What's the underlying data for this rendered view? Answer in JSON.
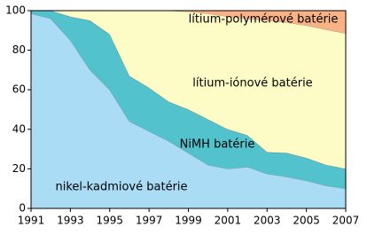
{
  "chart_data": {
    "type": "stacked-area",
    "x": [
      1991,
      1992,
      1993,
      1994,
      1995,
      1996,
      1997,
      1998,
      1999,
      2000,
      2001,
      2002,
      2003,
      2004,
      2005,
      2006,
      2007
    ],
    "series": [
      {
        "name": "nikel-kadmiové batérie",
        "color": "#aadcf5",
        "values": [
          98.5,
          96,
          85,
          70,
          60,
          44,
          39,
          34,
          28,
          22,
          20,
          21,
          17.5,
          16,
          14,
          11.5,
          10
        ]
      },
      {
        "name": "NiMH batérie",
        "color": "#52c2cc",
        "values": [
          1.5,
          4,
          12,
          25,
          28,
          23,
          22,
          20,
          22,
          23,
          20,
          16,
          11,
          12,
          11.5,
          10.5,
          10
        ]
      },
      {
        "name": "lítium-iónové batérie",
        "color": "#fdfbc6",
        "values": [
          0,
          0,
          3,
          5,
          12,
          33,
          39,
          46,
          49.5,
          53.5,
          57,
          59,
          66.5,
          66,
          67,
          68.5,
          68.5
        ]
      },
      {
        "name": "lítium-polymérové batérie",
        "color": "#f8b285",
        "values": [
          0,
          0,
          0,
          0,
          0,
          0,
          0,
          0,
          0.5,
          1.5,
          3,
          4,
          5,
          6,
          7.5,
          9.5,
          11.5
        ]
      }
    ],
    "xlim": [
      1991,
      2007
    ],
    "xticks": [
      1991,
      1993,
      1995,
      1997,
      1999,
      2001,
      2003,
      2005,
      2007
    ],
    "ylim": [
      0,
      100
    ],
    "yticks": [
      0,
      20,
      40,
      60,
      80,
      100
    ]
  }
}
